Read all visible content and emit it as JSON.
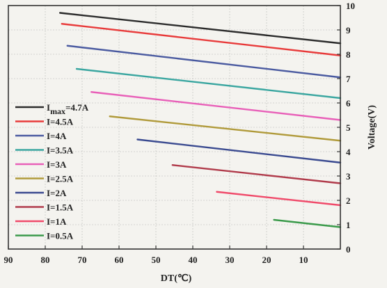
{
  "chart_data": {
    "type": "line",
    "title": "",
    "xlabel": "DT(℃)",
    "ylabel": "Voltage(V)",
    "x_reversed": true,
    "xlim": [
      90,
      0
    ],
    "ylim": [
      0,
      10
    ],
    "x_ticks": [
      90,
      80,
      70,
      60,
      50,
      40,
      30,
      20,
      10
    ],
    "y_ticks": [
      0,
      1,
      2,
      3,
      4,
      5,
      6,
      7,
      8,
      9,
      10
    ],
    "y_axis_side": "right",
    "grid": true,
    "legend_position": "left",
    "series": [
      {
        "name": "I_max=4.7A",
        "name_main": "I",
        "name_sub": "max",
        "name_tail": "=4.7A",
        "color": "#2b2b2b",
        "x": [
          76,
          0
        ],
        "y": [
          9.7,
          8.45
        ]
      },
      {
        "name": "I=4.5A",
        "color": "#e83a3a",
        "x": [
          75.5,
          0
        ],
        "y": [
          9.25,
          7.95
        ]
      },
      {
        "name": "I=4A",
        "color": "#4a5aa0",
        "x": [
          74,
          0
        ],
        "y": [
          8.35,
          7.05
        ]
      },
      {
        "name": "I=3.5A",
        "color": "#3aa6a0",
        "x": [
          71.5,
          0
        ],
        "y": [
          7.4,
          6.2
        ]
      },
      {
        "name": "I=3A",
        "color": "#e85fb8",
        "x": [
          67.5,
          0
        ],
        "y": [
          6.45,
          5.3
        ]
      },
      {
        "name": "I=2.5A",
        "color": "#b09a3a",
        "x": [
          62.5,
          0
        ],
        "y": [
          5.45,
          4.45
        ]
      },
      {
        "name": "I=2A",
        "color": "#3a4a90",
        "x": [
          55,
          0
        ],
        "y": [
          4.5,
          3.55
        ]
      },
      {
        "name": "I=1.5A",
        "color": "#b03a4a",
        "x": [
          45.5,
          0
        ],
        "y": [
          3.45,
          2.7
        ]
      },
      {
        "name": "I=1A",
        "color": "#f04a6a",
        "x": [
          33.5,
          0
        ],
        "y": [
          2.35,
          1.8
        ]
      },
      {
        "name": "I=0.5A",
        "color": "#3a9a4a",
        "x": [
          18,
          0
        ],
        "y": [
          1.2,
          0.9
        ]
      }
    ]
  }
}
